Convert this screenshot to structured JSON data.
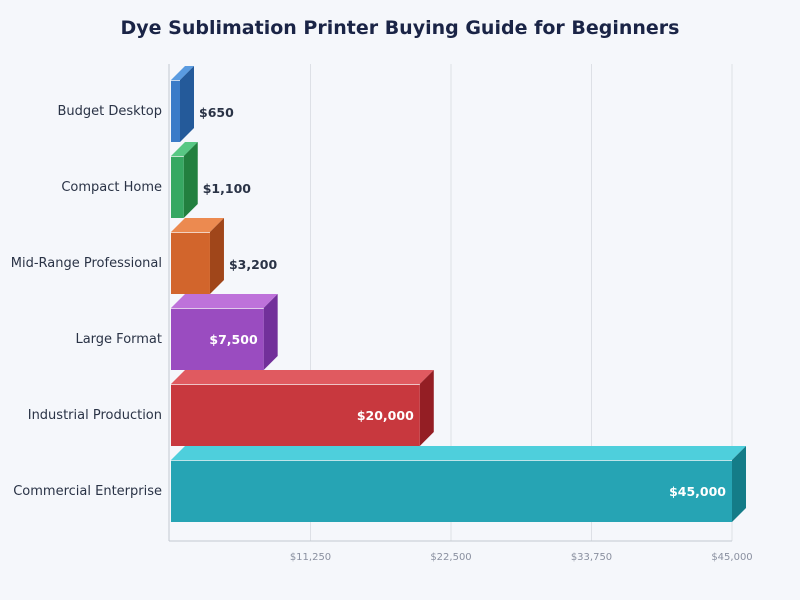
{
  "chart_data": {
    "type": "bar",
    "orientation": "horizontal",
    "style": "3d",
    "title": "Dye Sublimation Printer Buying Guide for Beginners",
    "xlabel": "",
    "ylabel": "",
    "xlim": [
      0,
      45000
    ],
    "x_ticks": [
      11250,
      22500,
      33750,
      45000
    ],
    "x_tick_labels": [
      "$11,250",
      "$22,500",
      "$33,750",
      "$45,000"
    ],
    "grid": "vertical",
    "categories": [
      "Budget Desktop",
      "Compact Home",
      "Mid-Range Professional",
      "Large Format",
      "Industrial Production",
      "Commercial Enterprise"
    ],
    "values": [
      650,
      1100,
      3200,
      7500,
      20000,
      45000
    ],
    "data_labels": [
      "$650",
      "$1,100",
      "$3,200",
      "$7,500",
      "$20,000",
      "$45,000"
    ],
    "colors": [
      {
        "front": "#3a7bc8",
        "top": "#5a9be0",
        "side": "#245a9a"
      },
      {
        "front": "#36a862",
        "top": "#58c884",
        "side": "#22803f"
      },
      {
        "front": "#d2652c",
        "top": "#ec8a50",
        "side": "#a0461a"
      },
      {
        "front": "#9a4cc0",
        "top": "#be72da",
        "side": "#72309a"
      },
      {
        "front": "#c8383e",
        "top": "#e05a60",
        "side": "#941e24"
      },
      {
        "front": "#26a4b4",
        "top": "#4ecfdc",
        "side": "#147c88"
      }
    ]
  }
}
